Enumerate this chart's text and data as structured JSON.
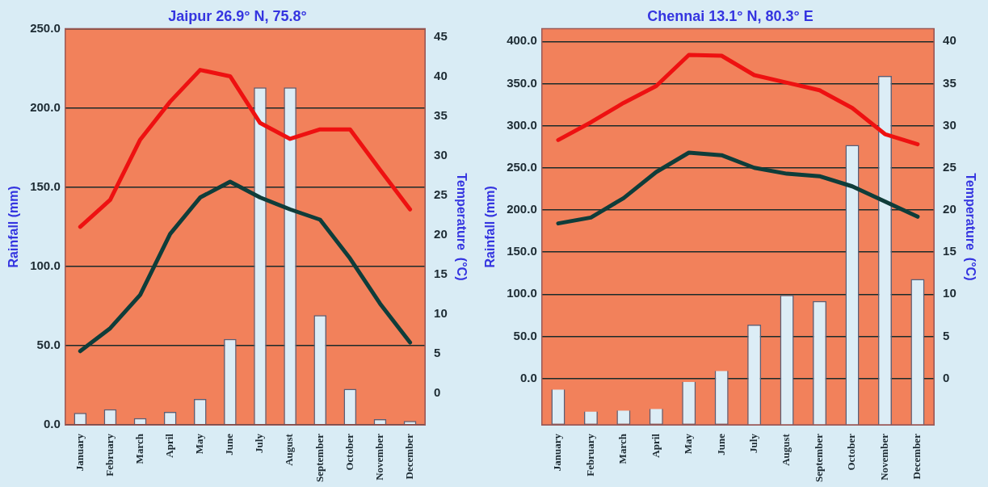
{
  "chart_data": [
    {
      "type": "bar",
      "title": "Jaipur 26.9° N, 75.8°",
      "ylabel": "Rainfall (mm)",
      "y2label": "Temperature  (°C)",
      "categories": [
        "January",
        "February",
        "March",
        "April",
        "May",
        "June",
        "July",
        "August",
        "September",
        "October",
        "November",
        "December"
      ],
      "series": [
        {
          "color": "#dcedf6",
          "values": [
            7.5,
            9.8,
            4.3,
            8.2,
            16.4,
            54.2,
            213,
            213,
            69.2,
            22.7,
            3.6,
            2.4
          ]
        },
        {
          "type": "line",
          "axis": "y2",
          "color": "#ee1111",
          "values": [
            21.0,
            24.4,
            32.0,
            36.8,
            40.8,
            40.0,
            34.1,
            32.1,
            33.3,
            33.3,
            28.2,
            23.2
          ]
        },
        {
          "type": "line",
          "axis": "y2",
          "color": "#0f3d3a",
          "values": [
            5.3,
            8.2,
            12.4,
            20.1,
            24.7,
            26.7,
            24.7,
            23.2,
            21.9,
            17.0,
            11.3,
            6.4
          ]
        }
      ],
      "ylim": [
        0,
        250
      ],
      "yticks": [
        {
          "value": 0,
          "label": "0.0"
        },
        {
          "value": 50,
          "label": "50.0"
        },
        {
          "value": 100,
          "label": "100.0"
        },
        {
          "value": 150,
          "label": "150.0"
        },
        {
          "value": 200,
          "label": "200.0"
        },
        {
          "value": 250,
          "label": "250.0"
        }
      ],
      "y2lim": [
        -4,
        46
      ],
      "y2ticks": [
        0,
        5,
        10,
        15,
        20,
        25,
        30,
        35,
        40,
        45
      ],
      "grid": "y",
      "legend": false,
      "marker": "none",
      "line_style": "solid"
    },
    {
      "type": "bar",
      "title": "Chennai 13.1° N, 80.3° E",
      "ylabel": "Rainfall (mm)",
      "y2label": "Temperature  (°C)",
      "categories": [
        "January",
        "February",
        "March",
        "April",
        "May",
        "June",
        "July",
        "August",
        "September",
        "October",
        "November",
        "December"
      ],
      "series": [
        {
          "color": "#dcedf6",
          "base": [
            -55,
            -55,
            -55,
            -55,
            -55,
            -55,
            -55,
            -55,
            -55,
            -55,
            -55,
            -55
          ],
          "values": [
            42,
            16,
            17,
            19,
            51,
            64,
            119,
            154,
            147,
            332,
            414,
            173
          ]
        },
        {
          "type": "line",
          "axis": "y2",
          "color": "#ee1111",
          "values": [
            28.3,
            30.4,
            32.7,
            34.7,
            38.4,
            38.3,
            36.0,
            35.1,
            34.2,
            32.1,
            29.0,
            27.8
          ]
        },
        {
          "type": "line",
          "axis": "y2",
          "color": "#0f3d3a",
          "values": [
            18.4,
            19.1,
            21.4,
            24.5,
            26.8,
            26.5,
            25.0,
            24.3,
            24.0,
            22.8,
            21.0,
            19.2
          ]
        }
      ],
      "ylim": [
        -55,
        415
      ],
      "yticks": [
        {
          "value": 0,
          "label": "0.0"
        },
        {
          "value": 50,
          "label": "50.0"
        },
        {
          "value": 100,
          "label": "100.0"
        },
        {
          "value": 150,
          "label": "150.0"
        },
        {
          "value": 200,
          "label": "200.0"
        },
        {
          "value": 250,
          "label": "250.0"
        },
        {
          "value": 300,
          "label": "300.0"
        },
        {
          "value": 350,
          "label": "350.0"
        },
        {
          "value": 400,
          "label": "400.0"
        }
      ],
      "y2lim": [
        -5.5,
        41.5
      ],
      "y2ticks": [
        0,
        5,
        10,
        15,
        20,
        25,
        30,
        35,
        40
      ],
      "grid": "y",
      "legend": false,
      "marker": "none",
      "line_style": "solid"
    }
  ]
}
